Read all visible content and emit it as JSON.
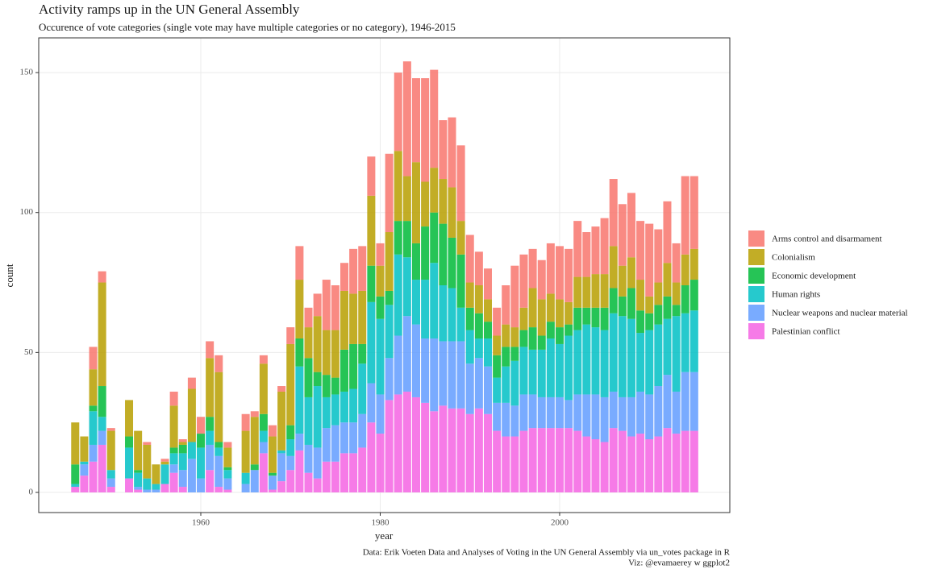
{
  "chart_data": {
    "type": "bar",
    "stacked": true,
    "title": "Activity ramps up in the UN General Assembly",
    "subtitle": "Occurence of vote categories (single vote may have multiple categories or no category), 1946-2015",
    "xlabel": "year",
    "ylabel": "count",
    "caption": [
      "Data: Erik Voeten Data and Analyses of Voting in the UN General Assembly via un_votes package in R",
      "Viz: @evamaerey w ggplot2"
    ],
    "grid": true,
    "legend": "right",
    "xlim": [
      1941.93,
      2018.97
    ],
    "ylim": [
      -7.2,
      162.4
    ],
    "xticks": [
      1960,
      1980,
      2000
    ],
    "yticks": [
      0,
      50,
      100,
      150
    ],
    "x": [
      1946,
      1947,
      1948,
      1949,
      1950,
      1952,
      1953,
      1954,
      1955,
      1956,
      1957,
      1958,
      1959,
      1960,
      1961,
      1962,
      1963,
      1965,
      1966,
      1967,
      1968,
      1969,
      1970,
      1971,
      1972,
      1973,
      1974,
      1975,
      1976,
      1977,
      1978,
      1979,
      1980,
      1981,
      1982,
      1983,
      1984,
      1985,
      1986,
      1987,
      1988,
      1989,
      1990,
      1991,
      1992,
      1993,
      1994,
      1995,
      1996,
      1997,
      1998,
      1999,
      2000,
      2001,
      2002,
      2003,
      2004,
      2005,
      2006,
      2007,
      2008,
      2009,
      2010,
      2011,
      2012,
      2013,
      2014,
      2015
    ],
    "series": [
      {
        "name": "Arms control and disarmament",
        "color": "#F8766D",
        "values": [
          0,
          0,
          8,
          4,
          1,
          0,
          0,
          1,
          0,
          1,
          5,
          1,
          4,
          6,
          6,
          6,
          2,
          6,
          2,
          3,
          4,
          2,
          6,
          12,
          7,
          8,
          18,
          16,
          10,
          16,
          16,
          14,
          8,
          28,
          28,
          41,
          30,
          37,
          35,
          21,
          25,
          27,
          17,
          12,
          11,
          10,
          14,
          22,
          19,
          14,
          14,
          18,
          19,
          19,
          20,
          16,
          17,
          20,
          24,
          22,
          23,
          21,
          26,
          19,
          22,
          14,
          28,
          26
        ]
      },
      {
        "name": "Colonialism",
        "color": "#B79F00",
        "values": [
          15,
          9,
          13,
          37,
          14,
          13,
          14,
          12,
          7,
          1,
          15,
          1,
          19,
          0,
          21,
          25,
          7,
          15,
          17,
          18,
          13,
          21,
          29,
          21,
          11,
          20,
          16,
          17,
          21,
          18,
          19,
          25,
          11,
          21,
          25,
          16,
          29,
          16,
          16,
          16,
          18,
          12,
          9,
          10,
          8,
          7,
          8,
          7,
          8,
          14,
          13,
          10,
          10,
          8,
          11,
          11,
          12,
          12,
          15,
          11,
          11,
          11,
          6,
          8,
          12,
          8,
          11,
          11
        ]
      },
      {
        "name": "Economic development",
        "color": "#00BA38",
        "values": [
          7,
          0,
          2,
          11,
          0,
          4,
          1,
          0,
          0,
          0,
          2,
          3,
          0,
          5,
          5,
          2,
          1,
          0,
          2,
          6,
          1,
          0,
          5,
          10,
          14,
          5,
          8,
          6,
          15,
          16,
          7,
          13,
          8,
          5,
          12,
          13,
          13,
          19,
          18,
          22,
          18,
          19,
          8,
          9,
          6,
          8,
          7,
          5,
          6,
          8,
          5,
          6,
          6,
          4,
          8,
          6,
          7,
          8,
          9,
          7,
          11,
          8,
          6,
          7,
          8,
          4,
          10,
          11
        ]
      },
      {
        "name": "Human rights",
        "color": "#00BFC4",
        "values": [
          1,
          1,
          12,
          5,
          3,
          11,
          5,
          4,
          2,
          7,
          4,
          6,
          6,
          11,
          5,
          3,
          3,
          4,
          0,
          4,
          0,
          1,
          6,
          24,
          17,
          22,
          11,
          11,
          11,
          12,
          18,
          29,
          27,
          19,
          29,
          21,
          16,
          21,
          27,
          20,
          19,
          12,
          12,
          7,
          10,
          9,
          13,
          16,
          17,
          16,
          17,
          21,
          19,
          23,
          23,
          25,
          24,
          24,
          28,
          29,
          28,
          21,
          23,
          22,
          20,
          27,
          21,
          22
        ]
      },
      {
        "name": "Nuclear weapons and nuclear material",
        "color": "#619CFF",
        "values": [
          0,
          4,
          6,
          5,
          3,
          0,
          1,
          1,
          1,
          0,
          3,
          6,
          12,
          5,
          9,
          11,
          4,
          3,
          8,
          4,
          5,
          10,
          5,
          6,
          10,
          11,
          12,
          13,
          11,
          11,
          12,
          14,
          14,
          15,
          21,
          27,
          26,
          23,
          26,
          23,
          24,
          24,
          18,
          18,
          17,
          10,
          12,
          11,
          13,
          12,
          11,
          11,
          11,
          10,
          13,
          15,
          16,
          16,
          13,
          12,
          14,
          15,
          16,
          18,
          19,
          15,
          21,
          21
        ]
      },
      {
        "name": "Palestinian conflict",
        "color": "#F564E3",
        "values": [
          2,
          6,
          11,
          17,
          2,
          5,
          1,
          0,
          0,
          3,
          7,
          2,
          0,
          0,
          8,
          2,
          1,
          0,
          0,
          14,
          1,
          4,
          8,
          15,
          7,
          5,
          11,
          11,
          14,
          14,
          16,
          25,
          21,
          33,
          35,
          36,
          34,
          32,
          29,
          31,
          30,
          30,
          28,
          30,
          28,
          22,
          20,
          20,
          22,
          23,
          23,
          23,
          23,
          23,
          22,
          20,
          19,
          18,
          23,
          22,
          20,
          21,
          19,
          20,
          23,
          21,
          22,
          22
        ]
      }
    ]
  }
}
